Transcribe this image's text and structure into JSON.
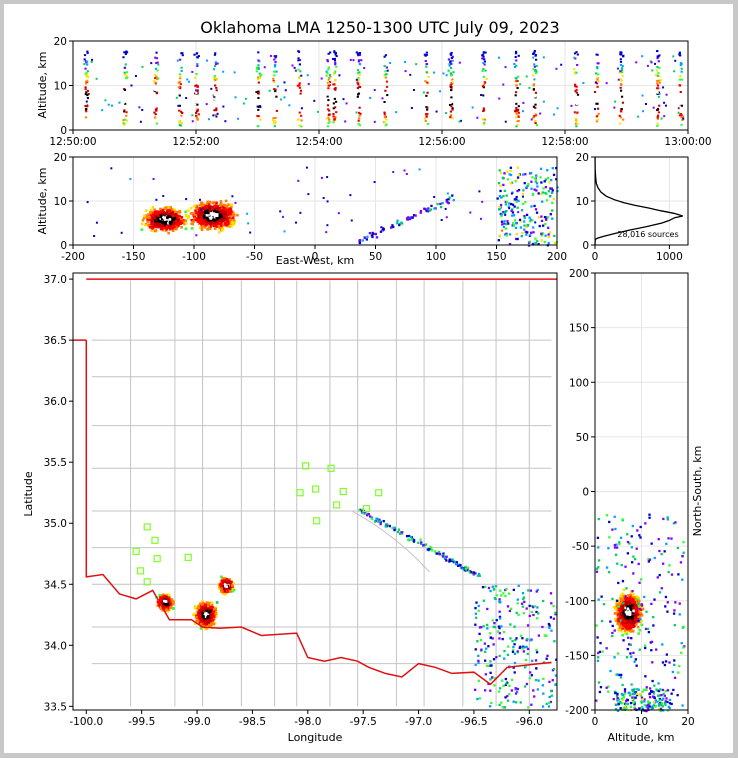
{
  "title": "Oklahoma LMA 1250-1300 UTC July 09, 2023",
  "colors": {
    "frame": "#c8c8c8",
    "state_border": "#e01010",
    "county_lines": "#c4c4c4",
    "station_marker": "#7fff2a",
    "density_palette": [
      "#0000cc",
      "#7f00ff",
      "#00a0ff",
      "#00d060",
      "#30ff30",
      "#ffe000",
      "#ff7f00",
      "#ff0000",
      "#c00000",
      "#000000",
      "#ffffff"
    ]
  },
  "chart_data": [
    {
      "id": "time_height",
      "type": "scatter",
      "title": "",
      "xlabel": "",
      "ylabel": "Altitude, km",
      "x_ticks": [
        "12:50:00",
        "12:52:00",
        "12:54:00",
        "12:56:00",
        "12:58:00",
        "13:00:00"
      ],
      "y_ticks": [
        "0",
        "10",
        "20"
      ],
      "xlim": [
        "12:50:00",
        "13:00:00"
      ],
      "ylim": [
        0,
        20
      ],
      "grid": true,
      "colored_by": "source density"
    },
    {
      "id": "ew_height",
      "type": "scatter",
      "xlabel": "East-West, km",
      "ylabel": "Altitude, km",
      "x_ticks": [
        "-200",
        "-150",
        "-100",
        "-50",
        "0",
        "50",
        "100",
        "150",
        "200"
      ],
      "y_ticks": [
        "0",
        "10",
        "20"
      ],
      "xlim": [
        -200,
        200
      ],
      "ylim": [
        0,
        20
      ],
      "grid": true
    },
    {
      "id": "altitude_histogram",
      "type": "line",
      "xlabel": "",
      "ylabel": "",
      "x_ticks": [
        "0",
        "1000"
      ],
      "y_ticks": [
        "0",
        "10",
        "20"
      ],
      "xlim": [
        0,
        1250
      ],
      "ylim": [
        0,
        20
      ],
      "annotation": "28,016 sources",
      "series": [
        {
          "x": [
            0,
            4,
            40,
            120,
            260,
            470,
            700,
            900,
            1000,
            1070,
            1180,
            1060,
            880,
            720,
            540,
            390,
            260,
            150,
            80,
            40,
            18,
            8,
            3,
            2,
            1
          ],
          "y": [
            0,
            1.3,
            1.6,
            2.0,
            2.6,
            3.4,
            4.2,
            5.0,
            5.6,
            6.2,
            6.6,
            7.2,
            7.8,
            8.4,
            9.0,
            9.6,
            10.3,
            11.1,
            12.0,
            13.0,
            14.0,
            15.5,
            17.0,
            18.5,
            20.0
          ]
        }
      ]
    },
    {
      "id": "plan_view",
      "type": "scatter",
      "xlabel": "Longitude",
      "ylabel": "Latitude",
      "x_ticks": [
        "-100.0",
        "-99.5",
        "-99.0",
        "-98.5",
        "-98.0",
        "-97.5",
        "-97.0",
        "-96.5",
        "-96.0"
      ],
      "y_ticks": [
        "33.5",
        "34.0",
        "34.5",
        "35.0",
        "35.5",
        "36.0",
        "36.5",
        "37.0"
      ],
      "xlim": [
        -100.12,
        -95.75
      ],
      "ylim": [
        33.47,
        37.05
      ],
      "stations": [
        {
          "lon": -98.02,
          "lat": 35.47
        },
        {
          "lon": -97.79,
          "lat": 35.45
        },
        {
          "lon": -98.07,
          "lat": 35.25
        },
        {
          "lon": -97.93,
          "lat": 35.28
        },
        {
          "lon": -97.68,
          "lat": 35.26
        },
        {
          "lon": -97.36,
          "lat": 35.25
        },
        {
          "lon": -97.74,
          "lat": 35.15
        },
        {
          "lon": -97.92,
          "lat": 35.02
        },
        {
          "lon": -97.47,
          "lat": 35.12
        },
        {
          "lon": -99.45,
          "lat": 34.97
        },
        {
          "lon": -99.38,
          "lat": 34.86
        },
        {
          "lon": -99.55,
          "lat": 34.77
        },
        {
          "lon": -99.36,
          "lat": 34.71
        },
        {
          "lon": -99.08,
          "lat": 34.72
        },
        {
          "lon": -99.51,
          "lat": 34.61
        },
        {
          "lon": -99.45,
          "lat": 34.52
        }
      ]
    },
    {
      "id": "ns_height",
      "type": "scatter",
      "xlabel": "Altitude, km",
      "ylabel": "North-South, km",
      "x_ticks": [
        "0",
        "10",
        "20"
      ],
      "y_ticks": [
        "-200",
        "-150",
        "-100",
        "-50",
        "0",
        "50",
        "100",
        "150",
        "200"
      ],
      "xlim": [
        0,
        20
      ],
      "ylim": [
        -200,
        200
      ],
      "grid": true
    }
  ]
}
